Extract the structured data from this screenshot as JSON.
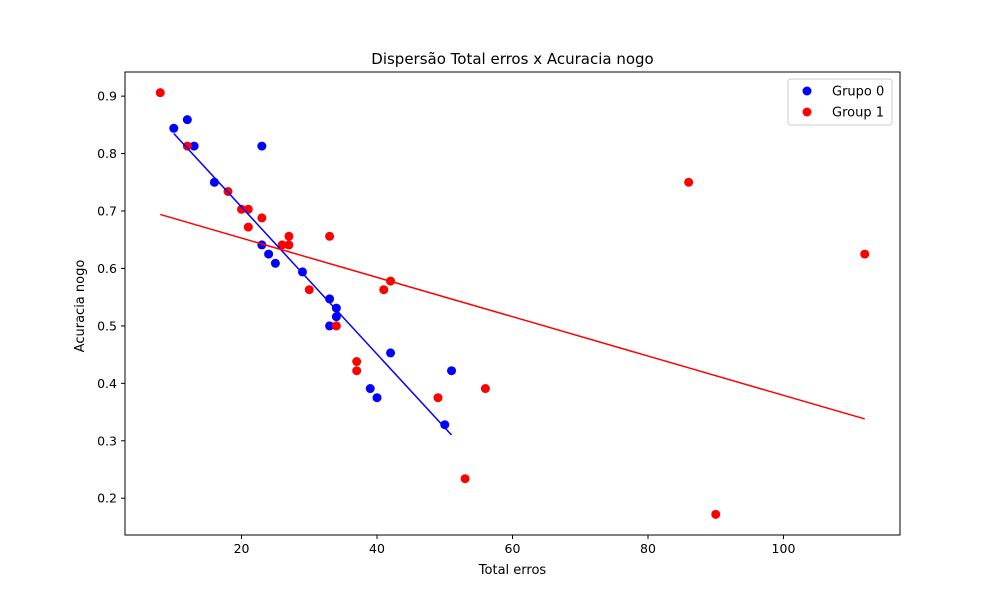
{
  "chart_data": {
    "type": "scatter",
    "title": "Dispersão Total erros x Acuracia nogo",
    "xlabel": "Total erros",
    "ylabel": "Acuracia nogo",
    "xlim": [
      2.8,
      117.2
    ],
    "ylim": [
      0.136,
      0.942
    ],
    "xticks": [
      20,
      40,
      60,
      80,
      100
    ],
    "yticks": [
      0.2,
      0.3,
      0.4,
      0.5,
      0.6,
      0.7,
      0.8,
      0.9
    ],
    "grid": false,
    "legend_position": "top-right",
    "series": [
      {
        "name": "Grupo 0",
        "color": "#0000ff",
        "points": [
          [
            10,
            0.844
          ],
          [
            12,
            0.859
          ],
          [
            13,
            0.813
          ],
          [
            16,
            0.75
          ],
          [
            23,
            0.813
          ],
          [
            23,
            0.641
          ],
          [
            24,
            0.625
          ],
          [
            25,
            0.609
          ],
          [
            29,
            0.594
          ],
          [
            33,
            0.547
          ],
          [
            34,
            0.531
          ],
          [
            34,
            0.516
          ],
          [
            33,
            0.5
          ],
          [
            39,
            0.391
          ],
          [
            40,
            0.375
          ],
          [
            42,
            0.453
          ],
          [
            50,
            0.328
          ],
          [
            51,
            0.422
          ]
        ],
        "fit_line": {
          "x": [
            10,
            51
          ],
          "y": [
            0.835,
            0.31
          ]
        }
      },
      {
        "name": "Group 1",
        "color": "#ff0000",
        "points": [
          [
            8,
            0.906
          ],
          [
            12,
            0.813
          ],
          [
            18,
            0.734
          ],
          [
            20,
            0.703
          ],
          [
            21,
            0.703
          ],
          [
            21,
            0.672
          ],
          [
            23,
            0.688
          ],
          [
            26,
            0.641
          ],
          [
            27,
            0.656
          ],
          [
            27,
            0.641
          ],
          [
            30,
            0.563
          ],
          [
            33,
            0.656
          ],
          [
            34,
            0.5
          ],
          [
            37,
            0.438
          ],
          [
            37,
            0.422
          ],
          [
            41,
            0.563
          ],
          [
            42,
            0.578
          ],
          [
            49,
            0.375
          ],
          [
            53,
            0.234
          ],
          [
            56,
            0.391
          ],
          [
            86,
            0.75
          ],
          [
            90,
            0.172
          ],
          [
            112,
            0.625
          ]
        ],
        "fit_line": {
          "x": [
            8,
            112
          ],
          "y": [
            0.694,
            0.338
          ]
        }
      }
    ]
  }
}
